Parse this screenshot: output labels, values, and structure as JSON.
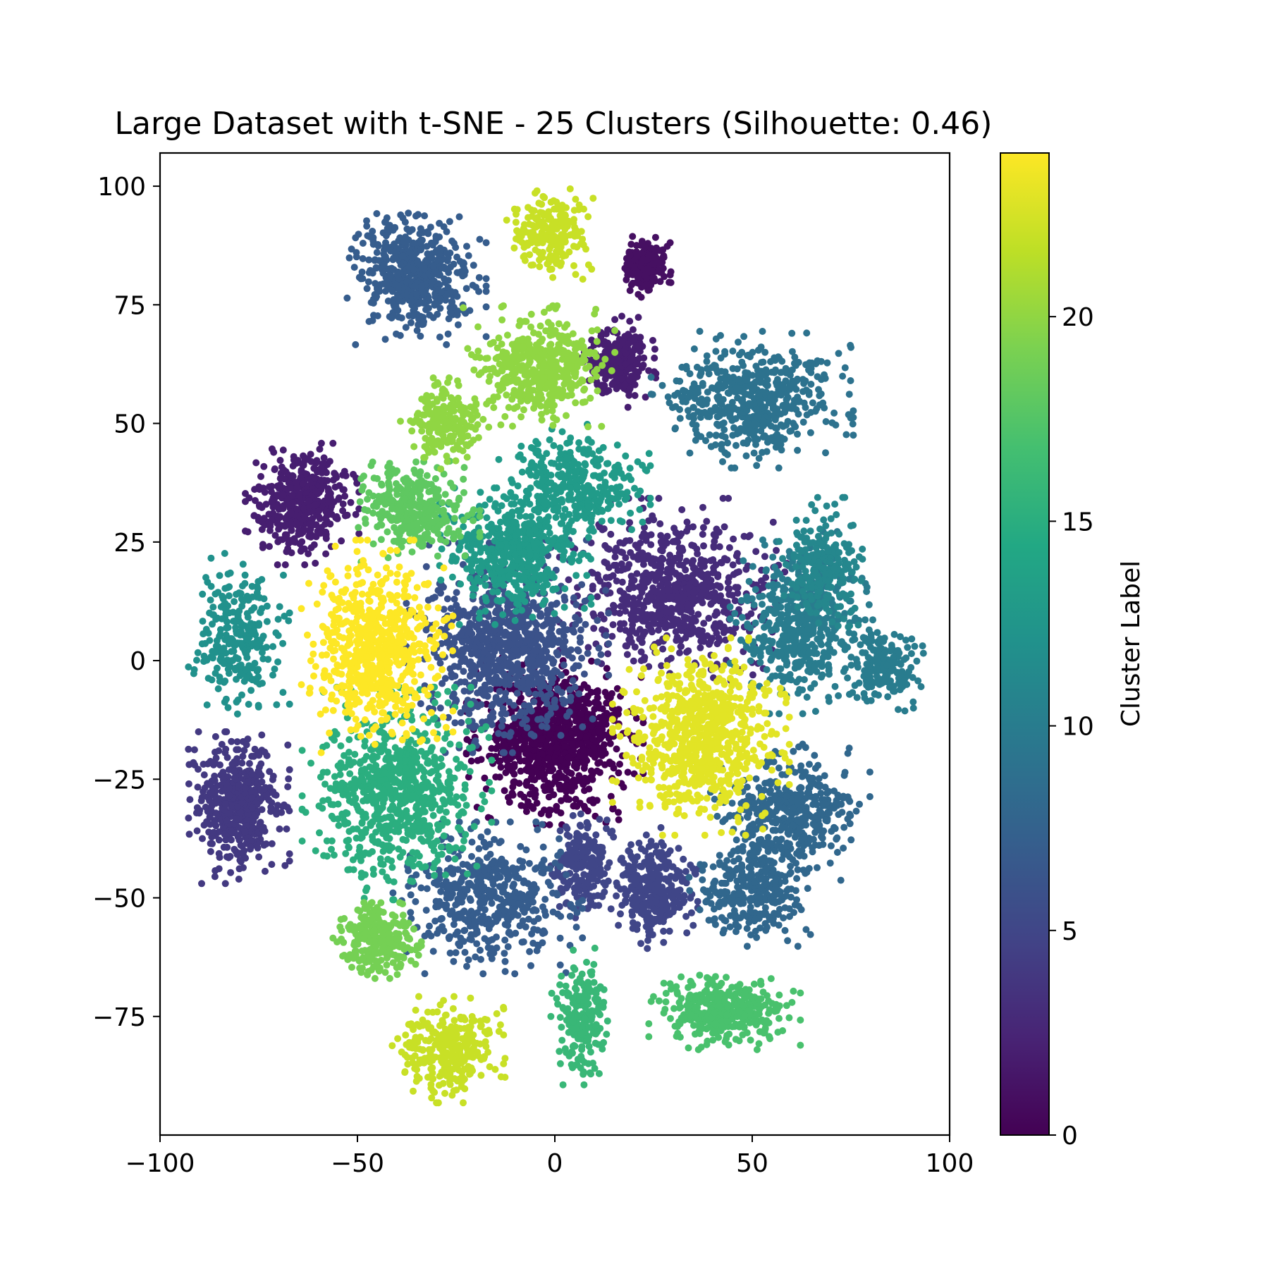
{
  "chart_data": {
    "type": "scatter",
    "title": "Large Dataset with t-SNE - 25 Clusters (Silhouette: 0.46)",
    "xlabel": "",
    "ylabel": "",
    "xlim": [
      -100,
      100
    ],
    "ylim": [
      -100,
      107
    ],
    "x_ticks": [
      -100,
      -50,
      0,
      50,
      100
    ],
    "y_ticks": [
      100,
      75,
      50,
      25,
      0,
      -25,
      -50,
      -75
    ],
    "x_tick_labels": [
      "−100",
      "−50",
      "0",
      "50",
      "100"
    ],
    "y_tick_labels": [
      "100",
      "75",
      "50",
      "25",
      "0",
      "−25",
      "−50",
      "−75"
    ],
    "grid": false,
    "legend": "none",
    "colorbar": {
      "label": "Cluster Label",
      "colormap": "viridis",
      "range": [
        0,
        24
      ],
      "ticks": [
        0,
        5,
        10,
        15,
        20
      ],
      "tick_labels": [
        "0",
        "5",
        "10",
        "15",
        "20"
      ]
    },
    "clusters": [
      {
        "label": 0,
        "center": [
          0,
          -17
        ],
        "spread": [
          14,
          11
        ],
        "points": 900
      },
      {
        "label": 1,
        "center": [
          23,
          83
        ],
        "spread": [
          4,
          4
        ],
        "points": 180
      },
      {
        "label": 2,
        "center": [
          16,
          63
        ],
        "spread": [
          6,
          6
        ],
        "points": 260
      },
      {
        "label": 2,
        "center": [
          -64,
          33
        ],
        "spread": [
          9,
          8
        ],
        "points": 420
      },
      {
        "label": 3,
        "center": [
          30,
          15
        ],
        "spread": [
          18,
          12
        ],
        "points": 700
      },
      {
        "label": 4,
        "center": [
          -80,
          -31
        ],
        "spread": [
          8,
          10
        ],
        "points": 480
      },
      {
        "label": 5,
        "center": [
          25,
          -48
        ],
        "spread": [
          7,
          8
        ],
        "points": 320
      },
      {
        "label": 5,
        "center": [
          7,
          -43
        ],
        "spread": [
          5,
          7
        ],
        "points": 200
      },
      {
        "label": 6,
        "center": [
          -12,
          3
        ],
        "spread": [
          16,
          14
        ],
        "points": 850
      },
      {
        "label": 7,
        "center": [
          -35,
          81
        ],
        "spread": [
          11,
          9
        ],
        "points": 520
      },
      {
        "label": 7,
        "center": [
          -17,
          -50
        ],
        "spread": [
          15,
          10
        ],
        "points": 480
      },
      {
        "label": 8,
        "center": [
          59,
          -32
        ],
        "spread": [
          13,
          9
        ],
        "points": 420
      },
      {
        "label": 8,
        "center": [
          50,
          -49
        ],
        "spread": [
          10,
          7
        ],
        "points": 280
      },
      {
        "label": 9,
        "center": [
          50,
          55
        ],
        "spread": [
          16,
          9
        ],
        "points": 540
      },
      {
        "label": 10,
        "center": [
          62,
          8
        ],
        "spread": [
          11,
          12
        ],
        "points": 480
      },
      {
        "label": 10,
        "center": [
          83,
          -1
        ],
        "spread": [
          7,
          6
        ],
        "points": 200
      },
      {
        "label": 11,
        "center": [
          68,
          20
        ],
        "spread": [
          7,
          9
        ],
        "points": 220
      },
      {
        "label": 12,
        "center": [
          -80,
          5
        ],
        "spread": [
          8,
          11
        ],
        "points": 260
      },
      {
        "label": 13,
        "center": [
          -10,
          22
        ],
        "spread": [
          12,
          9
        ],
        "points": 480
      },
      {
        "label": 13,
        "center": [
          5,
          37
        ],
        "spread": [
          12,
          8
        ],
        "points": 360
      },
      {
        "label": 15,
        "center": [
          -40,
          -28
        ],
        "spread": [
          15,
          14
        ],
        "points": 720
      },
      {
        "label": 16,
        "center": [
          7,
          -75
        ],
        "spread": [
          5,
          9
        ],
        "points": 200
      },
      {
        "label": 17,
        "center": [
          43,
          -74
        ],
        "spread": [
          12,
          5
        ],
        "points": 360
      },
      {
        "label": 18,
        "center": [
          -35,
          32
        ],
        "spread": [
          10,
          7
        ],
        "points": 340
      },
      {
        "label": 19,
        "center": [
          -45,
          -59
        ],
        "spread": [
          7,
          5
        ],
        "points": 280
      },
      {
        "label": 20,
        "center": [
          -4,
          62
        ],
        "spread": [
          12,
          8
        ],
        "points": 460
      },
      {
        "label": 20,
        "center": [
          -28,
          50
        ],
        "spread": [
          7,
          6
        ],
        "points": 200
      },
      {
        "label": 22,
        "center": [
          -1,
          90
        ],
        "spread": [
          7,
          6
        ],
        "points": 200
      },
      {
        "label": 22,
        "center": [
          -27,
          -82
        ],
        "spread": [
          9,
          7
        ],
        "points": 300
      },
      {
        "label": 23,
        "center": [
          37,
          -16
        ],
        "spread": [
          14,
          13
        ],
        "points": 760
      },
      {
        "label": 24,
        "center": [
          -45,
          3
        ],
        "spread": [
          12,
          14
        ],
        "points": 640
      }
    ]
  }
}
